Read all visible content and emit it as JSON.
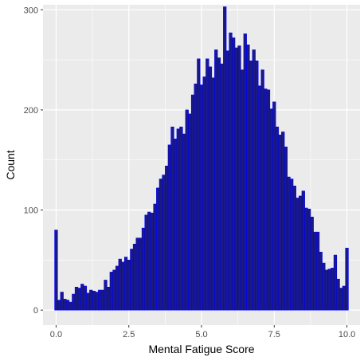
{
  "chart_data": {
    "type": "bar",
    "xlabel": "Mental Fatigue Score",
    "ylabel": "Count",
    "x_ticks": [
      0.0,
      2.5,
      5.0,
      7.5,
      10.0
    ],
    "x_tick_labels": [
      "0.0",
      "2.5",
      "5.0",
      "7.5",
      "10.0"
    ],
    "y_ticks": [
      0,
      100,
      200,
      300
    ],
    "y_tick_labels": [
      "0",
      "100",
      "200",
      "300"
    ],
    "xlim": [
      -0.45,
      10.45
    ],
    "ylim": [
      -15,
      305
    ],
    "bin_width": 0.1,
    "x": [
      0.0,
      0.1,
      0.2,
      0.3,
      0.4,
      0.5,
      0.6,
      0.7,
      0.8,
      0.9,
      1.0,
      1.1,
      1.2,
      1.3,
      1.4,
      1.5,
      1.6,
      1.7,
      1.8,
      1.9,
      2.0,
      2.1,
      2.2,
      2.3,
      2.4,
      2.5,
      2.6,
      2.7,
      2.8,
      2.9,
      3.0,
      3.1,
      3.2,
      3.3,
      3.4,
      3.5,
      3.6,
      3.7,
      3.8,
      3.9,
      4.0,
      4.1,
      4.2,
      4.3,
      4.4,
      4.5,
      4.6,
      4.7,
      4.8,
      4.9,
      5.0,
      5.1,
      5.2,
      5.3,
      5.4,
      5.5,
      5.6,
      5.7,
      5.8,
      5.9,
      6.0,
      6.1,
      6.2,
      6.3,
      6.4,
      6.5,
      6.6,
      6.7,
      6.8,
      6.9,
      7.0,
      7.1,
      7.2,
      7.3,
      7.4,
      7.5,
      7.6,
      7.7,
      7.8,
      7.9,
      8.0,
      8.1,
      8.2,
      8.3,
      8.4,
      8.5,
      8.6,
      8.7,
      8.8,
      8.9,
      9.0,
      9.1,
      9.2,
      9.3,
      9.4,
      9.5,
      9.6,
      9.7,
      9.8,
      9.9,
      10.0
    ],
    "values": [
      80,
      10,
      18,
      11,
      10,
      8,
      16,
      23,
      22,
      26,
      24,
      17,
      20,
      19,
      18,
      20,
      20,
      30,
      23,
      38,
      40,
      44,
      51,
      48,
      53,
      50,
      61,
      66,
      72,
      72,
      82,
      95,
      98,
      97,
      106,
      122,
      131,
      135,
      144,
      165,
      183,
      171,
      181,
      183,
      176,
      200,
      196,
      215,
      226,
      251,
      225,
      233,
      251,
      243,
      232,
      260,
      252,
      246,
      303,
      259,
      277,
      272,
      262,
      264,
      240,
      276,
      265,
      249,
      260,
      249,
      224,
      240,
      221,
      220,
      201,
      208,
      183,
      175,
      178,
      163,
      133,
      131,
      124,
      112,
      114,
      119,
      102,
      101,
      93,
      78,
      78,
      58,
      47,
      40,
      41,
      42,
      55,
      31,
      22,
      24,
      62
    ],
    "bar_fill": "#1a1a80",
    "bar_stroke": "#0000ff",
    "panel_background": "#ebebeb",
    "grid_color": "#ffffff",
    "grid": true
  }
}
